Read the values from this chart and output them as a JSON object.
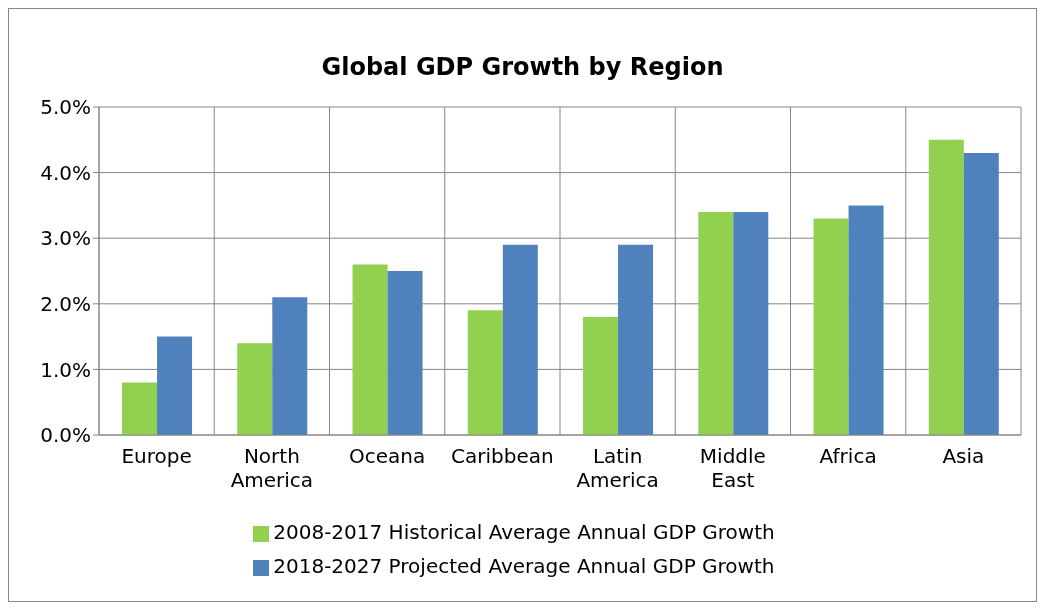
{
  "chart_data": {
    "type": "bar",
    "title": "Global GDP Growth by Region",
    "categories": [
      "Europe",
      "North America",
      "Oceana",
      "Caribbean",
      "Latin America",
      "Middle East",
      "Africa",
      "Asia"
    ],
    "series": [
      {
        "name": "2008-2017 Historical Average Annual GDP Growth",
        "color": "#92d050",
        "values": [
          0.8,
          1.4,
          2.6,
          1.9,
          1.8,
          3.4,
          3.3,
          4.5
        ]
      },
      {
        "name": "2018-2027 Projected Average Annual GDP Growth",
        "color": "#4f81bd",
        "values": [
          1.5,
          2.1,
          2.5,
          2.9,
          2.9,
          3.4,
          3.5,
          4.3
        ]
      }
    ],
    "ylim": [
      0,
      5
    ],
    "yticks": [
      {
        "value": 0,
        "label": "0.0%"
      },
      {
        "value": 1,
        "label": "1.0%"
      },
      {
        "value": 2,
        "label": "2.0%"
      },
      {
        "value": 3,
        "label": "3.0%"
      },
      {
        "value": 4,
        "label": "4.0%"
      },
      {
        "value": 5,
        "label": "5.0%"
      }
    ],
    "grid": true,
    "legend": "bottom"
  }
}
